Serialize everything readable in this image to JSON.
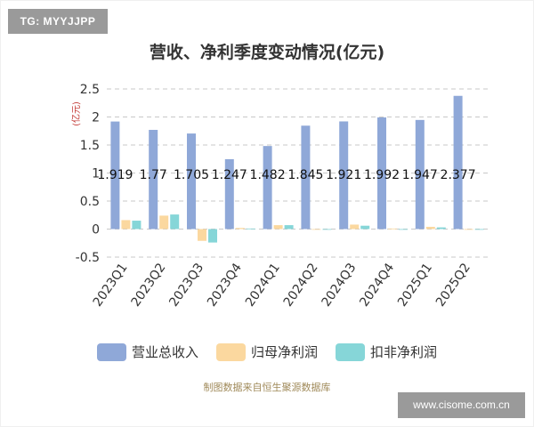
{
  "watermark_top_left": "TG: MYYJJPP",
  "watermark_bottom_right": "www.cisome.com.cn",
  "source_note": "制图数据来自恒生聚源数据库",
  "colors": {
    "revenue": "#8fa8d8",
    "net_profit": "#fbd89f",
    "deducted_net_profit": "#86d6d8",
    "grid": "#c8c8c8",
    "axis_text": "#333333",
    "unit": "#c23531"
  },
  "chart_data": {
    "type": "bar",
    "title": "营收、净利季度变动情况(亿元)",
    "ylabel": "(亿元)",
    "ylim": [
      -0.5,
      2.5
    ],
    "yticks": [
      "2.5",
      "2",
      "1.5",
      "1",
      "0.5",
      "0",
      "-0.5"
    ],
    "ytick_values": [
      2.5,
      2,
      1.5,
      1,
      0.5,
      0,
      -0.5
    ],
    "grid": true,
    "legend_position": "bottom",
    "categories": [
      "2023Q1",
      "2023Q2",
      "2023Q3",
      "2023Q4",
      "2024Q1",
      "2024Q2",
      "2024Q3",
      "2024Q4",
      "2025Q1",
      "2025Q2"
    ],
    "series": [
      {
        "name": "营业总收入",
        "values": [
          1.919,
          1.77,
          1.705,
          1.247,
          1.482,
          1.845,
          1.921,
          1.992,
          1.947,
          2.377
        ]
      },
      {
        "name": "归母净利润",
        "values": [
          0.16,
          0.24,
          -0.21,
          0.02,
          0.07,
          0.0,
          0.08,
          0.01,
          0.04,
          0.0
        ]
      },
      {
        "name": "扣非净利润",
        "values": [
          0.15,
          0.26,
          -0.24,
          0.01,
          0.07,
          0.0,
          0.06,
          0.0,
          0.03,
          0.0
        ]
      }
    ],
    "data_labels": [
      "1.919",
      "1.77",
      "1.705",
      "1.247",
      "1.482",
      "1.845",
      "1.921",
      "1.992",
      "1.947",
      "2.377"
    ]
  }
}
